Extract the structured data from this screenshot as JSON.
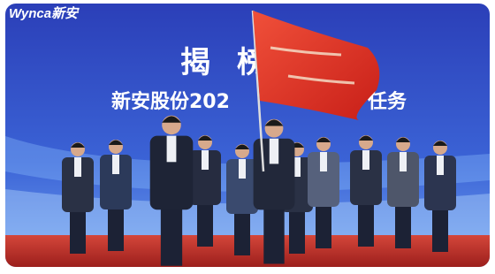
{
  "logo": "Wynca新安",
  "banner": {
    "headline": "揭榜",
    "subtitle_left": "新安股份202",
    "subtitle_right": "任务"
  }
}
